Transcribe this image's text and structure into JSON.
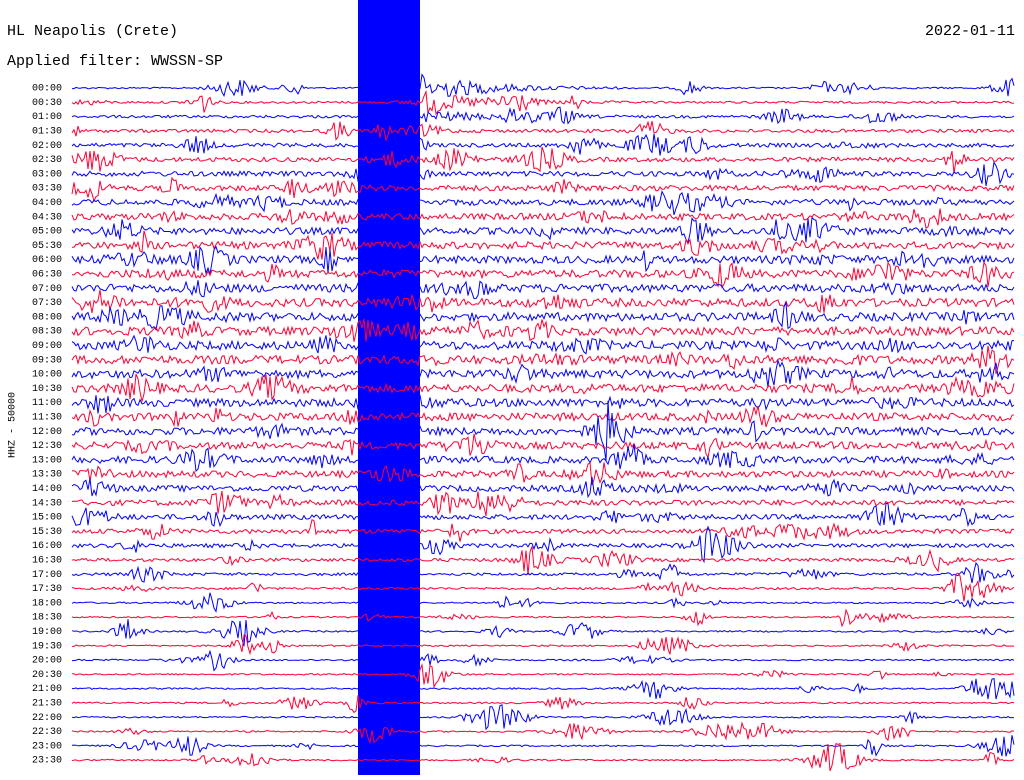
{
  "header": {
    "station": "HL Neapolis (Crete)",
    "date": "2022-01-11",
    "filter": "Applied filter: WWSSN-SP"
  },
  "axis_label": "HHZ - 50000",
  "times": [
    "00:00",
    "00:30",
    "01:00",
    "01:30",
    "02:00",
    "02:30",
    "03:00",
    "03:30",
    "04:00",
    "04:30",
    "05:00",
    "05:30",
    "06:00",
    "06:30",
    "07:00",
    "07:30",
    "08:00",
    "08:30",
    "09:00",
    "09:30",
    "10:00",
    "10:30",
    "11:00",
    "11:30",
    "12:00",
    "12:30",
    "13:00",
    "13:30",
    "14:00",
    "14:30",
    "15:00",
    "15:30",
    "16:00",
    "16:30",
    "17:00",
    "17:30",
    "18:00",
    "18:30",
    "19:00",
    "19:30",
    "20:00",
    "20:30",
    "21:00",
    "21:30",
    "22:00",
    "22:30",
    "23:00",
    "23:30"
  ]
}
